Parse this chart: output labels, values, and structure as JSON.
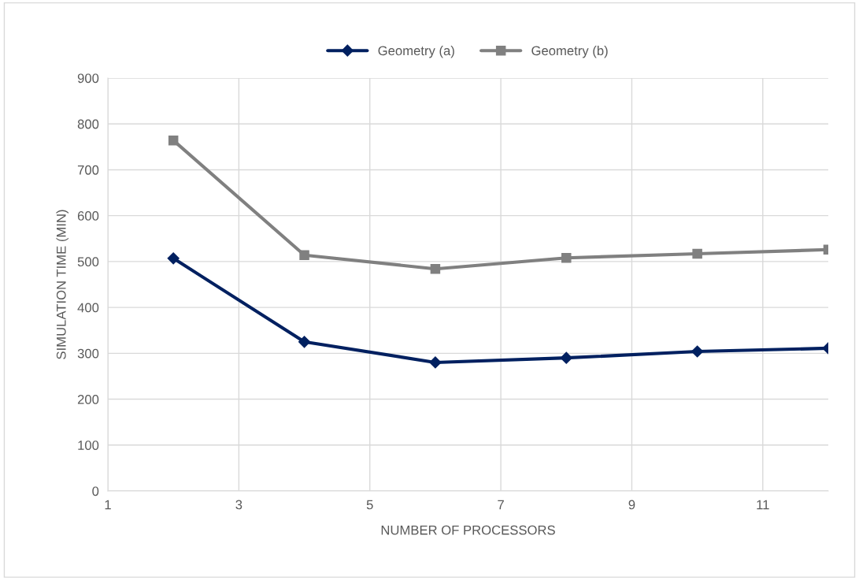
{
  "chart_data": {
    "type": "line",
    "xlabel": "NUMBER OF PROCESSORS",
    "ylabel": "SIMULATION TIME (MIN)",
    "x": [
      2,
      4,
      6,
      8,
      10,
      12
    ],
    "series": [
      {
        "name": "Geometry (a)",
        "color": "#002060",
        "marker": "diamond",
        "values": [
          507,
          325,
          280,
          290,
          304,
          311
        ]
      },
      {
        "name": "Geometry (b)",
        "color": "#808080",
        "marker": "square",
        "values": [
          764,
          514,
          484,
          508,
          517,
          526
        ]
      }
    ],
    "xlim": [
      1,
      12
    ],
    "xticks": [
      1,
      3,
      5,
      7,
      9,
      11
    ],
    "ylim": [
      0,
      900
    ],
    "yticks": [
      0,
      100,
      200,
      300,
      400,
      500,
      600,
      700,
      800,
      900
    ],
    "grid": true,
    "legend": "top",
    "line_style": "solid"
  }
}
